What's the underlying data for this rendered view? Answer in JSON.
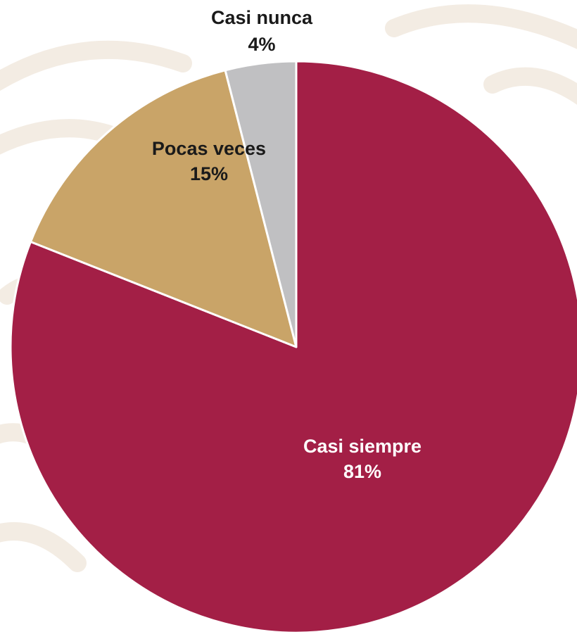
{
  "chart_data": {
    "type": "pie",
    "title": "",
    "start_angle_deg": 0,
    "direction": "clockwise",
    "slices": [
      {
        "label": "Casi siempre",
        "value": 81,
        "value_label": "81%",
        "color": "#A31F46",
        "label_color": "#ffffff"
      },
      {
        "label": "Pocas veces",
        "value": 15,
        "value_label": "15%",
        "color": "#C9A468",
        "label_color": "#1a1a1a"
      },
      {
        "label": "Casi nunca",
        "value": 4,
        "value_label": "4%",
        "color": "#C0C0C2",
        "label_color": "#1a1a1a"
      }
    ]
  },
  "colors": {
    "background": "#ffffff",
    "watermark": "#F3ECE3",
    "slice_border": "#ffffff"
  }
}
